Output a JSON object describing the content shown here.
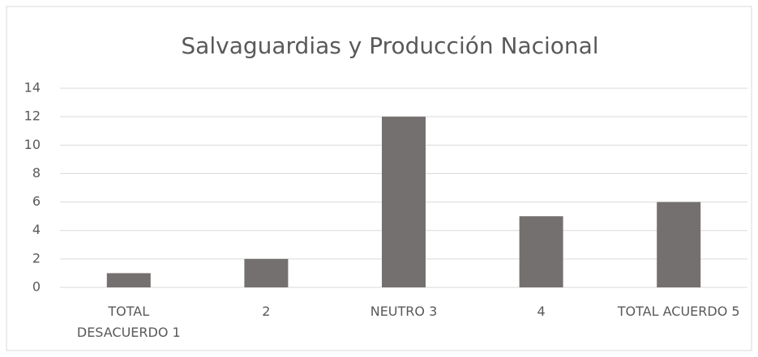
{
  "chart_data": {
    "type": "bar",
    "title": "Salvaguardias y Producción Nacional",
    "categories": [
      "TOTAL DESACUERDO 1",
      "2",
      "NEUTRO 3",
      "4",
      "TOTAL ACUERDO 5"
    ],
    "values": [
      1,
      2,
      12,
      5,
      6
    ],
    "color": "#757070",
    "ylim": [
      0,
      14
    ],
    "yticks": [
      0,
      2,
      4,
      6,
      8,
      10,
      12,
      14
    ],
    "grid": true
  }
}
